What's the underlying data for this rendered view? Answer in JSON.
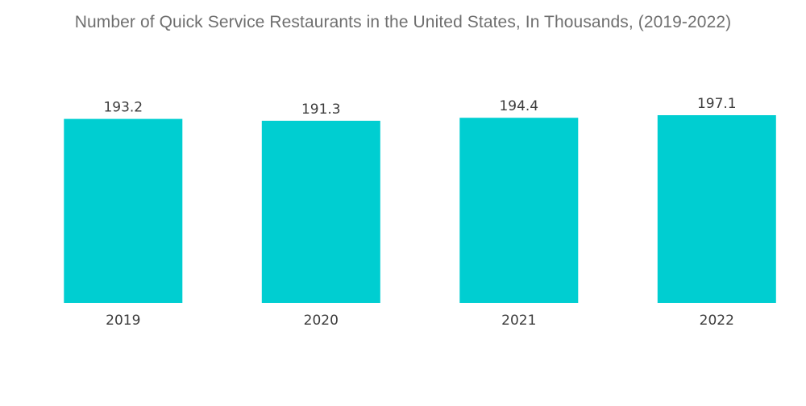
{
  "chart_data": {
    "type": "bar",
    "title": "Number of Quick Service Restaurants in the United States, In Thousands, (2019-2022)",
    "categories": [
      "2019",
      "2020",
      "2021",
      "2022"
    ],
    "values": [
      193.2,
      191.3,
      194.4,
      197.1
    ],
    "value_labels": [
      "193.2",
      "191.3",
      "194.4",
      "197.1"
    ],
    "xlabel": "",
    "ylabel": "",
    "grid": false,
    "legend": "none",
    "bar_color": "#00CED1"
  }
}
